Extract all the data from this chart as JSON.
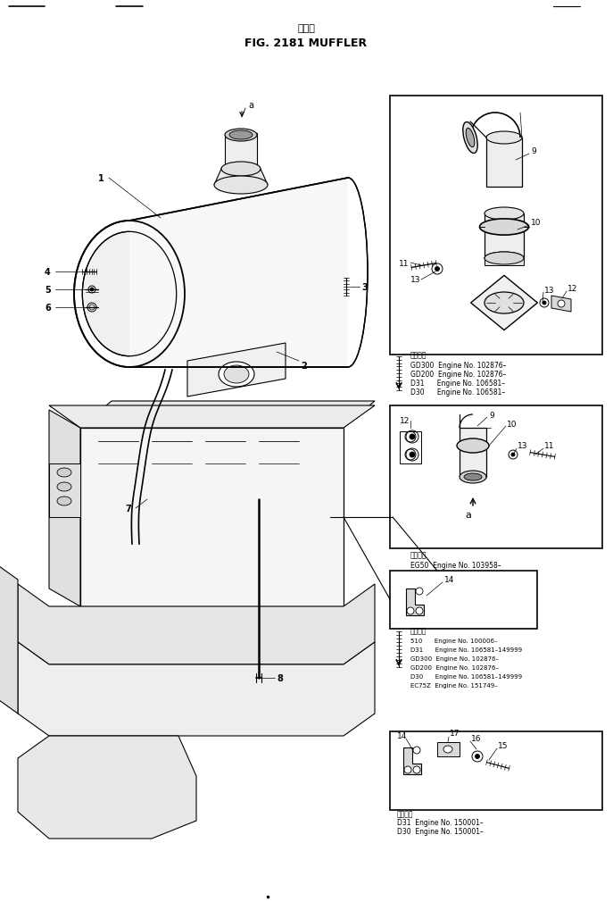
{
  "title_japanese": "マフラ",
  "title_english": "FIG. 2181 MUFFLER",
  "bg_color": "#ffffff",
  "line_color": "#000000",
  "fig_width": 6.87,
  "fig_height": 10.2,
  "appl1": {
    "header": "適用号機",
    "lines": [
      "GD300  Engine No. 102876–",
      "GD200  Engine No. 102876–",
      "D31      Engine No. 106581–",
      "D30      Engine No. 106581–"
    ]
  },
  "appl2": {
    "header": "適用号機",
    "lines": [
      "EG50  Engine No. 103958–"
    ]
  },
  "appl3": {
    "header": "適用号機",
    "lines": [
      "510      Engine No. 100006–",
      "D31      Engine No. 106581–149999",
      "GD300  Engine No. 102876–",
      "GD200  Engine No. 102876–",
      "D30      Engine No. 106581–149999",
      "EC75Z  Engine No. 151749–"
    ]
  },
  "appl4": {
    "header": "適用号機",
    "lines": [
      "D31  Engine No. 150001–",
      "D30  Engine No. 150001–"
    ]
  }
}
